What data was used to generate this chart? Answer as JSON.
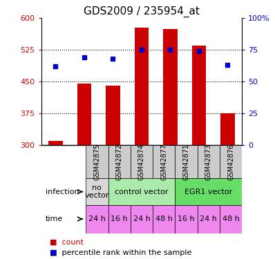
{
  "title": "GDS2009 / 235954_at",
  "samples": [
    "GSM42875",
    "GSM42872",
    "GSM42874",
    "GSM42877",
    "GSM42871",
    "GSM42873",
    "GSM42876"
  ],
  "bar_values": [
    310,
    445,
    440,
    578,
    575,
    535,
    375
  ],
  "percentile_values": [
    62,
    69,
    68,
    75,
    75,
    74,
    63
  ],
  "ylim_left": [
    300,
    600
  ],
  "ylim_right": [
    0,
    100
  ],
  "yticks_left": [
    300,
    375,
    450,
    525,
    600
  ],
  "yticks_right": [
    0,
    25,
    50,
    75,
    100
  ],
  "ytick_labels_left": [
    "300",
    "375",
    "450",
    "525",
    "600"
  ],
  "ytick_labels_right": [
    "0",
    "25",
    "50",
    "75",
    "100%"
  ],
  "bar_color": "#cc0000",
  "dot_color": "#0000cc",
  "bar_width": 0.5,
  "infection_labels": [
    "no\nvector",
    "control vector",
    "EGR1 vector"
  ],
  "infection_colors": [
    "#d8d8d8",
    "#aaeaaa",
    "#66dd66"
  ],
  "time_labels": [
    "24 h",
    "16 h",
    "24 h",
    "48 h",
    "16 h",
    "24 h",
    "48 h"
  ],
  "time_color": "#ee88ee",
  "gsm_bg_color": "#cccccc",
  "title_fontsize": 11,
  "tick_fontsize": 8,
  "label_fontsize": 8,
  "sample_fontsize": 7
}
